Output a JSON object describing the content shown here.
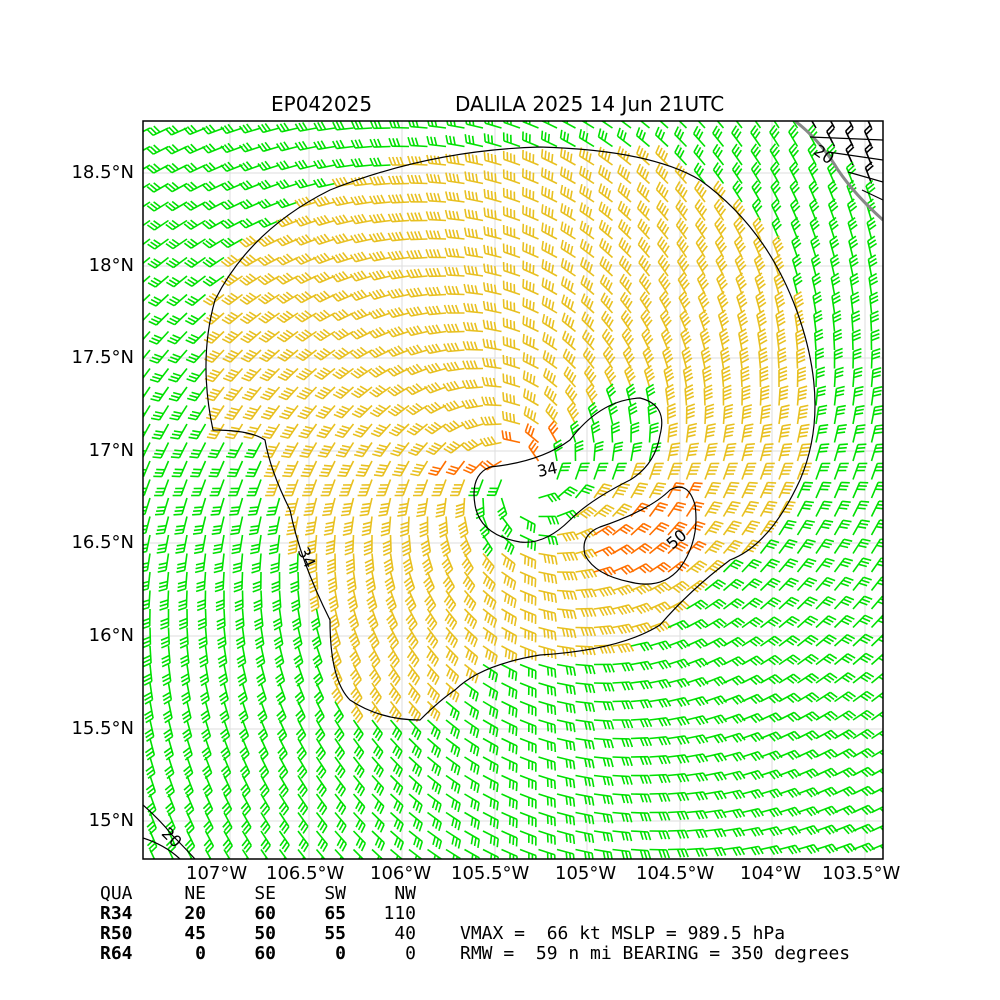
{
  "title": {
    "storm_id": "EP042025",
    "name_time": "DALILA 2025 14 Jun 21UTC"
  },
  "lat_labels": [
    "18.5°N",
    "18°N",
    "17.5°N",
    "17°N",
    "16.5°N",
    "16°N",
    "15.5°N",
    "15°N"
  ],
  "lon_labels": [
    "107°W",
    "106.5°W",
    "106°W",
    "105.5°W",
    "105°W",
    "104.5°W",
    "104°W",
    "103.5°W"
  ],
  "contour_labels": {
    "c34a": "34",
    "c34b": "34",
    "c50": "50",
    "c20a": "20",
    "c20b": "20"
  },
  "wind_radii_table": {
    "header": [
      "QUA",
      "NE",
      "SE",
      "SW",
      "NW"
    ],
    "rows": [
      {
        "label": "R34",
        "values": [
          "20",
          "60",
          "65",
          "110"
        ]
      },
      {
        "label": "R50",
        "values": [
          "45",
          "50",
          "55",
          "40"
        ]
      },
      {
        "label": "R64",
        "values": [
          "0",
          "60",
          "0",
          "0"
        ]
      }
    ]
  },
  "summary": {
    "line1": "VMAX =  66 kt MSLP = 989.5 hPa",
    "line2": "RMW =  59 n mi BEARING = 350 degrees"
  },
  "colors": {
    "wind_lt34": "#00e000",
    "wind_34_50": "#e8c020",
    "wind_50_64": "#ff7000",
    "wind_ge64": "#000000",
    "contour": "#000000",
    "coast": "#888888",
    "grid": "#dddddd"
  }
}
